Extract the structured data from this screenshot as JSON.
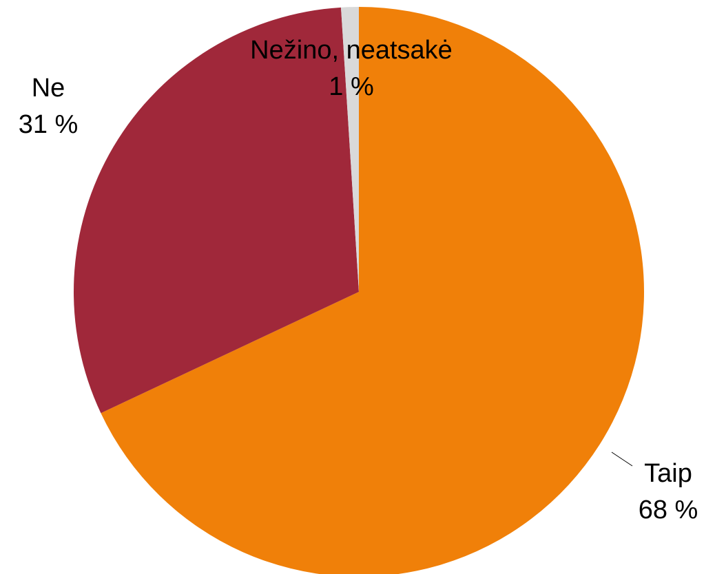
{
  "chart_data": {
    "type": "pie",
    "categories": [
      "Taip",
      "Ne",
      "Nežino, neatsakė"
    ],
    "values": [
      68,
      31,
      1
    ],
    "value_labels": [
      "68 %",
      "31 %",
      "1 %"
    ],
    "colors": [
      "#f08009",
      "#a0283a",
      "#d9d9d9"
    ]
  }
}
